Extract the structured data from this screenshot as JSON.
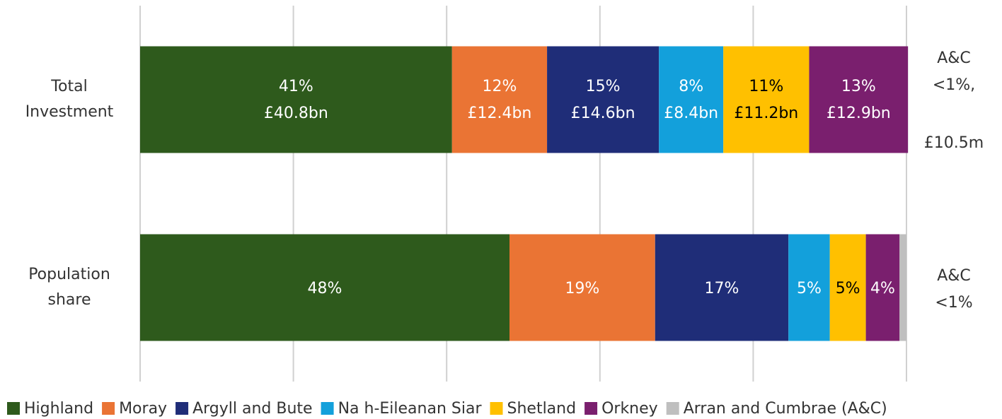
{
  "chart_data": {
    "type": "stacked_barh",
    "categories": [
      "Total Investment",
      "Population share"
    ],
    "xlim": [
      0,
      100
    ],
    "xticks": [
      0,
      20,
      40,
      60,
      80,
      100
    ],
    "grid": true,
    "legend": "bottom",
    "series": [
      {
        "name": "Highland",
        "color": "#2e5a1c",
        "label_color": "#ffffff",
        "values": [
          40.7,
          48.2
        ],
        "value_labels": [
          "41%",
          "48%"
        ],
        "amount_labels": [
          "£40.8bn",
          null
        ]
      },
      {
        "name": "Moray",
        "color": "#ea7434",
        "label_color": "#ffffff",
        "values": [
          12.4,
          19.0
        ],
        "value_labels": [
          "12%",
          "19%"
        ],
        "amount_labels": [
          "£12.4bn",
          null
        ]
      },
      {
        "name": "Argyll and Bute",
        "color": "#1f2d78",
        "label_color": "#ffffff",
        "values": [
          14.6,
          17.4
        ],
        "value_labels": [
          "15%",
          "17%"
        ],
        "amount_labels": [
          "£14.6bn",
          null
        ]
      },
      {
        "name": "Na h-Eileanan Siar",
        "color": "#13a0db",
        "label_color": "#ffffff",
        "values": [
          8.4,
          5.4
        ],
        "value_labels": [
          "8%",
          "5%"
        ],
        "amount_labels": [
          "£8.4bn",
          null
        ]
      },
      {
        "name": "Shetland",
        "color": "#ffc000",
        "label_color": "#000000",
        "values": [
          11.2,
          4.7
        ],
        "value_labels": [
          "11%",
          "5%"
        ],
        "amount_labels": [
          "£11.2bn",
          null
        ]
      },
      {
        "name": "Orkney",
        "color": "#7a1f6e",
        "label_color": "#ffffff",
        "values": [
          12.9,
          4.4
        ],
        "value_labels": [
          "13%",
          "4%"
        ],
        "amount_labels": [
          "£12.9bn",
          null
        ]
      },
      {
        "name": "Arran and Cumbrae (A&C)",
        "color": "#bfbfbf",
        "label_color": "#000000",
        "values": [
          0.01,
          0.9
        ],
        "value_labels": [
          null,
          null
        ],
        "amount_labels": [
          null,
          null
        ]
      }
    ],
    "annotations": [
      {
        "lines": [
          "A&C",
          "<1%,",
          "£10.5m"
        ]
      },
      {
        "lines": [
          "A&C",
          "<1%"
        ]
      }
    ]
  }
}
